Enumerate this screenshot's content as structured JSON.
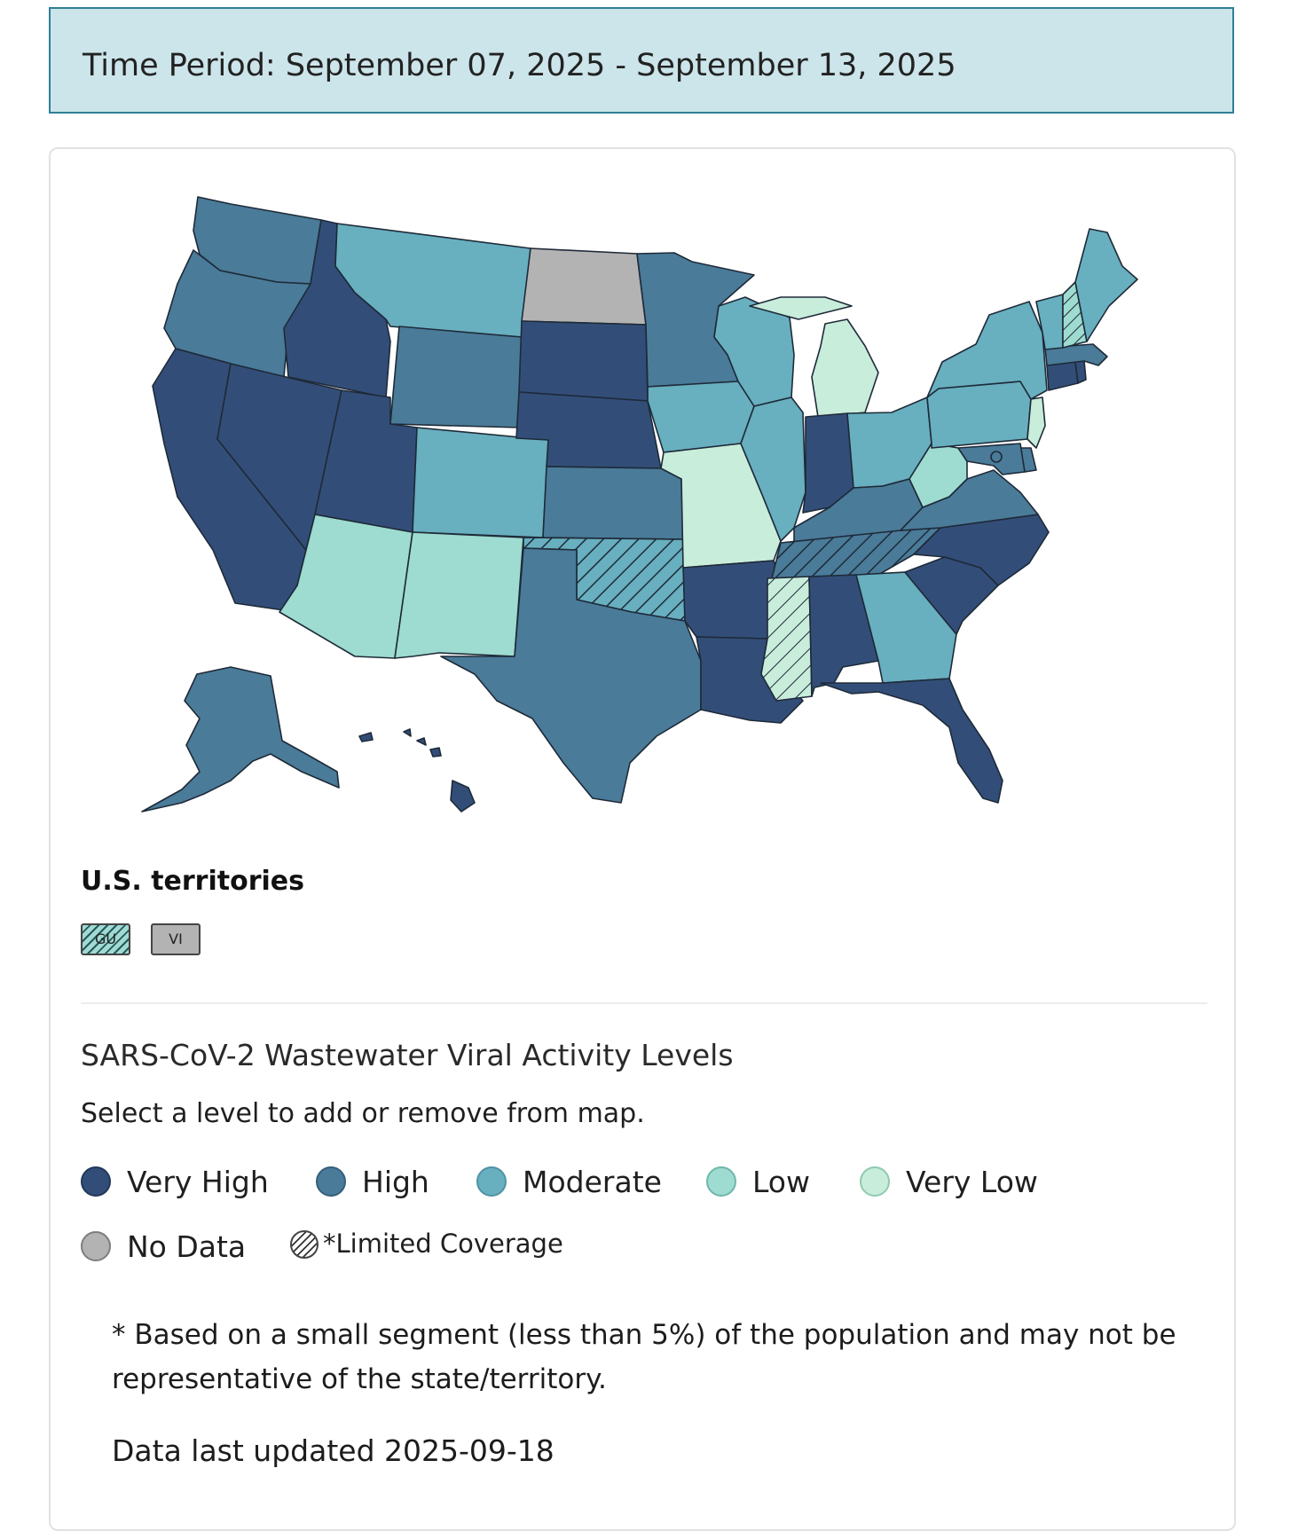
{
  "header": {
    "time_period": "Time Period: September 07, 2025 - September 13, 2025"
  },
  "colors": {
    "very_high": "#324e78",
    "high": "#4a7b99",
    "moderate": "#68afbf",
    "low": "#9edbd0",
    "very_low": "#c8eddb",
    "no_data": "#b3b3b3",
    "border": "#1e2a38"
  },
  "map": {
    "states": [
      {
        "abbr": "WA",
        "level": "high"
      },
      {
        "abbr": "OR",
        "level": "high"
      },
      {
        "abbr": "CA",
        "level": "very_high"
      },
      {
        "abbr": "NV",
        "level": "very_high"
      },
      {
        "abbr": "ID",
        "level": "very_high"
      },
      {
        "abbr": "MT",
        "level": "moderate"
      },
      {
        "abbr": "WY",
        "level": "high"
      },
      {
        "abbr": "UT",
        "level": "very_high"
      },
      {
        "abbr": "AZ",
        "level": "low"
      },
      {
        "abbr": "CO",
        "level": "moderate"
      },
      {
        "abbr": "NM",
        "level": "low"
      },
      {
        "abbr": "ND",
        "level": "no_data"
      },
      {
        "abbr": "SD",
        "level": "very_high"
      },
      {
        "abbr": "NE",
        "level": "very_high"
      },
      {
        "abbr": "KS",
        "level": "high"
      },
      {
        "abbr": "OK",
        "level": "moderate",
        "limited_coverage": true
      },
      {
        "abbr": "TX",
        "level": "high"
      },
      {
        "abbr": "MN",
        "level": "high"
      },
      {
        "abbr": "IA",
        "level": "moderate"
      },
      {
        "abbr": "MO",
        "level": "very_low"
      },
      {
        "abbr": "AR",
        "level": "very_high"
      },
      {
        "abbr": "LA",
        "level": "very_high"
      },
      {
        "abbr": "WI",
        "level": "moderate"
      },
      {
        "abbr": "IL",
        "level": "moderate"
      },
      {
        "abbr": "MI",
        "level": "very_low"
      },
      {
        "abbr": "IN",
        "level": "very_high"
      },
      {
        "abbr": "OH",
        "level": "moderate"
      },
      {
        "abbr": "KY",
        "level": "high"
      },
      {
        "abbr": "TN",
        "level": "high",
        "limited_coverage": true
      },
      {
        "abbr": "MS",
        "level": "very_low",
        "limited_coverage": true
      },
      {
        "abbr": "AL",
        "level": "very_high"
      },
      {
        "abbr": "GA",
        "level": "moderate"
      },
      {
        "abbr": "FL",
        "level": "very_high"
      },
      {
        "abbr": "SC",
        "level": "very_high"
      },
      {
        "abbr": "NC",
        "level": "very_high"
      },
      {
        "abbr": "VA",
        "level": "high"
      },
      {
        "abbr": "WV",
        "level": "low"
      },
      {
        "abbr": "PA",
        "level": "moderate"
      },
      {
        "abbr": "NY",
        "level": "moderate"
      },
      {
        "abbr": "NJ",
        "level": "very_low"
      },
      {
        "abbr": "MD",
        "level": "high"
      },
      {
        "abbr": "DE",
        "level": "high"
      },
      {
        "abbr": "DC",
        "level": "high"
      },
      {
        "abbr": "CT",
        "level": "very_high"
      },
      {
        "abbr": "RI",
        "level": "very_high"
      },
      {
        "abbr": "MA",
        "level": "high"
      },
      {
        "abbr": "VT",
        "level": "moderate"
      },
      {
        "abbr": "NH",
        "level": "low",
        "limited_coverage": true
      },
      {
        "abbr": "ME",
        "level": "moderate"
      },
      {
        "abbr": "AK",
        "level": "high"
      },
      {
        "abbr": "HI",
        "level": "very_high"
      }
    ]
  },
  "territories": {
    "title": "U.S. territories",
    "items": [
      {
        "abbr": "GU",
        "level": "low",
        "limited_coverage": true
      },
      {
        "abbr": "VI",
        "level": "no_data"
      }
    ]
  },
  "legend": {
    "title": "SARS-CoV-2 Wastewater Viral Activity Levels",
    "instruction": "Select a level to add or remove from map.",
    "items": [
      {
        "label": "Very High"
      },
      {
        "label": "High"
      },
      {
        "label": "Moderate"
      },
      {
        "label": "Low"
      },
      {
        "label": "Very Low"
      },
      {
        "label": "No Data"
      }
    ],
    "limited_coverage_label": "*Limited Coverage"
  },
  "footnote": "* Based on a small segment (less than 5%) of the population and may not be representative of the state/territory.",
  "last_updated": "Data last updated 2025-09-18"
}
